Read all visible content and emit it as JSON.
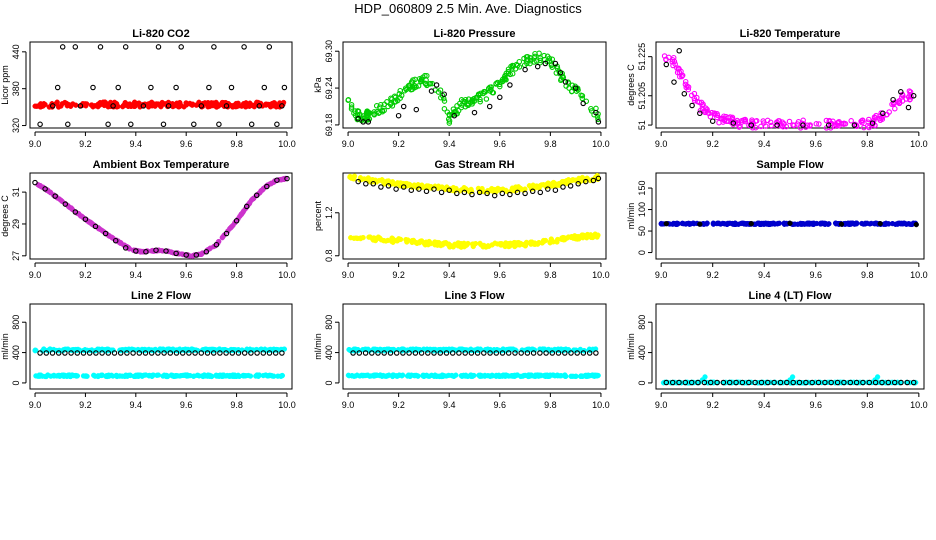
{
  "figure_title": "HDP_060809  2.5 Min. Ave. Diagnostics",
  "colors": {
    "black": "#000000",
    "red": "#ff0000",
    "green": "#00cc00",
    "magenta": "#ff00ff",
    "yellow": "#ffff00",
    "cyan": "#00ffff",
    "blue": "#0000cc",
    "purple": "#cc33cc"
  },
  "chart_data": [
    {
      "type": "scatter",
      "title": "Li-820 CO2",
      "ylabel": "Licor ppm",
      "xlim": [
        8.98,
        10.02
      ],
      "ylim": [
        316,
        456
      ],
      "xticks": [
        "9.0",
        "9.2",
        "9.4",
        "9.6",
        "9.8",
        "10.0"
      ],
      "xtick_values": [
        9.0,
        9.2,
        9.4,
        9.6,
        9.8,
        10.0
      ],
      "yticks": [
        "320",
        "380",
        "440"
      ],
      "ytick_values": [
        320,
        380,
        440
      ],
      "series": [
        {
          "name": "red-dense",
          "color": "#ff0000",
          "marker": "filled",
          "mode": "dense",
          "x_range": [
            9.0,
            9.99
          ],
          "y_center": 354,
          "y_spread": 4,
          "count": 240,
          "seed": 11
        },
        {
          "name": "black-outliers",
          "color": "#000000",
          "marker": "open",
          "x": [
            9.02,
            9.07,
            9.09,
            9.11,
            9.13,
            9.16,
            9.18,
            9.23,
            9.26,
            9.29,
            9.31,
            9.33,
            9.36,
            9.38,
            9.43,
            9.46,
            9.49,
            9.51,
            9.53,
            9.56,
            9.58,
            9.63,
            9.66,
            9.69,
            9.71,
            9.73,
            9.76,
            9.78,
            9.83,
            9.86,
            9.89,
            9.91,
            9.93,
            9.96,
            9.98,
            9.99
          ],
          "y": [
            322,
            352,
            382,
            448,
            322,
            448,
            352,
            382,
            448,
            322,
            352,
            382,
            448,
            322,
            352,
            382,
            448,
            322,
            352,
            382,
            448,
            322,
            352,
            382,
            448,
            322,
            352,
            382,
            448,
            322,
            352,
            382,
            448,
            322,
            352,
            382
          ]
        }
      ]
    },
    {
      "type": "scatter",
      "title": "Li-820 Pressure",
      "ylabel": "kPa",
      "xlim": [
        8.98,
        10.02
      ],
      "ylim": [
        69.175,
        69.315
      ],
      "xticks": [
        "9.0",
        "9.2",
        "9.4",
        "9.6",
        "9.8",
        "10.0"
      ],
      "xtick_values": [
        9.0,
        9.2,
        9.4,
        9.6,
        9.8,
        10.0
      ],
      "yticks": [
        "69.18",
        "69.24",
        "69.30"
      ],
      "ytick_values": [
        69.18,
        69.24,
        69.3
      ],
      "series": [
        {
          "name": "green-dense",
          "color": "#00cc00",
          "marker": "open",
          "mode": "curve",
          "x_range": [
            9.0,
            9.99
          ],
          "y_spread": 0.008,
          "count": 260,
          "seed": 23,
          "curve_x": [
            9.0,
            9.05,
            9.1,
            9.18,
            9.25,
            9.3,
            9.36,
            9.4,
            9.45,
            9.5,
            9.55,
            9.6,
            9.65,
            9.7,
            9.75,
            9.8,
            9.85,
            9.9,
            9.95,
            9.99
          ],
          "curve_y": [
            69.215,
            69.19,
            69.2,
            69.22,
            69.245,
            69.255,
            69.24,
            69.19,
            69.215,
            69.22,
            69.23,
            69.25,
            69.27,
            69.285,
            69.29,
            69.285,
            69.255,
            69.235,
            69.215,
            69.195
          ]
        },
        {
          "name": "black-points",
          "color": "#000000",
          "marker": "open",
          "x": [
            9.04,
            9.06,
            9.08,
            9.2,
            9.22,
            9.27,
            9.33,
            9.35,
            9.38,
            9.42,
            9.5,
            9.56,
            9.6,
            9.64,
            9.7,
            9.75,
            9.78,
            9.82,
            9.84,
            9.86,
            9.9,
            9.93,
            9.98,
            9.99
          ],
          "y": [
            69.19,
            69.185,
            69.185,
            69.195,
            69.21,
            69.205,
            69.235,
            69.245,
            69.23,
            69.195,
            69.2,
            69.21,
            69.225,
            69.245,
            69.27,
            69.275,
            69.28,
            69.28,
            69.265,
            69.25,
            69.24,
            69.215,
            69.2,
            69.185
          ]
        }
      ]
    },
    {
      "type": "scatter",
      "title": "Li-820 Temperature",
      "ylabel": "degrees C",
      "xlim": [
        8.98,
        10.02
      ],
      "ylim": [
        51.1885,
        51.2325
      ],
      "xticks": [
        "9.0",
        "9.2",
        "9.4",
        "9.6",
        "9.8",
        "10.0"
      ],
      "xtick_values": [
        9.0,
        9.2,
        9.4,
        9.6,
        9.8,
        10.0
      ],
      "yticks": [
        "51",
        "51.205",
        "51.225"
      ],
      "ytick_values": [
        51.19,
        51.205,
        51.225
      ],
      "series": [
        {
          "name": "magenta-dense",
          "color": "#ff00ff",
          "marker": "open",
          "mode": "curve",
          "x_range": [
            9.0,
            9.99
          ],
          "y_spread": 0.0025,
          "count": 220,
          "seed": 37,
          "curve_x": [
            9.0,
            9.03,
            9.06,
            9.1,
            9.15,
            9.2,
            9.25,
            9.3,
            9.4,
            9.6,
            9.8,
            9.84,
            9.88,
            9.92,
            9.96,
            9.99
          ],
          "curve_y": [
            51.222,
            51.226,
            51.22,
            51.21,
            51.2,
            51.194,
            51.192,
            51.191,
            51.19,
            51.19,
            51.19,
            51.193,
            51.198,
            51.202,
            51.205,
            51.207
          ]
        },
        {
          "name": "black-points",
          "color": "#000000",
          "marker": "open",
          "x": [
            9.02,
            9.05,
            9.07,
            9.09,
            9.12,
            9.15,
            9.2,
            9.28,
            9.35,
            9.45,
            9.55,
            9.65,
            9.75,
            9.82,
            9.86,
            9.9,
            9.93,
            9.96,
            9.98
          ],
          "y": [
            51.221,
            51.212,
            51.228,
            51.206,
            51.2,
            51.196,
            51.192,
            51.191,
            51.19,
            51.19,
            51.19,
            51.19,
            51.19,
            51.191,
            51.196,
            51.203,
            51.207,
            51.199,
            51.205
          ]
        }
      ]
    },
    {
      "type": "scatter",
      "title": "Ambient Box Temperature",
      "ylabel": "degrees C",
      "xlim": [
        8.98,
        10.02
      ],
      "ylim": [
        26.8,
        32.2
      ],
      "xticks": [
        "9.0",
        "9.2",
        "9.4",
        "9.6",
        "9.8",
        "10.0"
      ],
      "xtick_values": [
        9.0,
        9.2,
        9.4,
        9.6,
        9.8,
        10.0
      ],
      "yticks": [
        "27",
        "29",
        "31"
      ],
      "ytick_values": [
        27,
        29,
        31
      ],
      "series": [
        {
          "name": "purple-dense",
          "color": "#cc33cc",
          "marker": "filled",
          "mode": "curve",
          "x_range": [
            9.0,
            10.0
          ],
          "y_spread": 0.03,
          "count": 260,
          "seed": 41,
          "curve_x": [
            9.0,
            9.05,
            9.1,
            9.2,
            9.3,
            9.38,
            9.42,
            9.5,
            9.55,
            9.62,
            9.66,
            9.72,
            9.8,
            9.86,
            9.92,
            9.96,
            10.0
          ],
          "curve_y": [
            31.6,
            31.1,
            30.5,
            29.3,
            28.2,
            27.4,
            27.25,
            27.35,
            27.2,
            27.0,
            27.1,
            27.7,
            29.2,
            30.5,
            31.4,
            31.75,
            31.85
          ]
        },
        {
          "name": "black-points",
          "color": "#000000",
          "marker": "open",
          "x": [
            9.0,
            9.04,
            9.08,
            9.12,
            9.16,
            9.2,
            9.24,
            9.28,
            9.32,
            9.36,
            9.4,
            9.44,
            9.48,
            9.52,
            9.56,
            9.6,
            9.64,
            9.68,
            9.72,
            9.76,
            9.8,
            9.84,
            9.88,
            9.92,
            9.96,
            10.0
          ],
          "y": [
            31.6,
            31.2,
            30.75,
            30.25,
            29.75,
            29.3,
            28.85,
            28.4,
            27.95,
            27.5,
            27.3,
            27.25,
            27.35,
            27.3,
            27.15,
            27.05,
            27.05,
            27.25,
            27.7,
            28.4,
            29.2,
            30.1,
            30.8,
            31.35,
            31.75,
            31.85
          ]
        }
      ]
    },
    {
      "type": "scatter",
      "title": "Gas Stream RH",
      "ylabel": "percent",
      "xlim": [
        8.98,
        10.02
      ],
      "ylim": [
        0.77,
        1.57
      ],
      "xticks": [
        "9.0",
        "9.2",
        "9.4",
        "9.6",
        "9.8",
        "10.0"
      ],
      "xtick_values": [
        9.0,
        9.2,
        9.4,
        9.6,
        9.8,
        10.0
      ],
      "yticks": [
        "0.8",
        "1.2"
      ],
      "ytick_values": [
        0.8,
        1.2
      ],
      "series": [
        {
          "name": "yellow-upper",
          "color": "#ffff00",
          "marker": "filled",
          "mode": "curve",
          "x_range": [
            9.0,
            9.99
          ],
          "y_spread": 0.02,
          "count": 200,
          "seed": 53,
          "curve_x": [
            9.0,
            9.1,
            9.2,
            9.3,
            9.4,
            9.5,
            9.6,
            9.7,
            9.8,
            9.9,
            9.99
          ],
          "curve_y": [
            1.53,
            1.5,
            1.47,
            1.44,
            1.42,
            1.41,
            1.41,
            1.43,
            1.46,
            1.5,
            1.53
          ]
        },
        {
          "name": "yellow-lower",
          "color": "#ffff00",
          "marker": "filled",
          "mode": "curve",
          "x_range": [
            9.0,
            9.99
          ],
          "y_spread": 0.02,
          "count": 200,
          "seed": 61,
          "curve_x": [
            9.0,
            9.1,
            9.2,
            9.3,
            9.4,
            9.5,
            9.6,
            9.7,
            9.8,
            9.9,
            9.99
          ],
          "curve_y": [
            0.98,
            0.96,
            0.94,
            0.92,
            0.9,
            0.9,
            0.9,
            0.91,
            0.94,
            0.97,
            0.99
          ]
        },
        {
          "name": "black-points",
          "color": "#000000",
          "marker": "open",
          "x": [
            9.04,
            9.07,
            9.1,
            9.13,
            9.16,
            9.19,
            9.22,
            9.25,
            9.28,
            9.31,
            9.34,
            9.37,
            9.4,
            9.43,
            9.46,
            9.49,
            9.52,
            9.55,
            9.58,
            9.61,
            9.64,
            9.67,
            9.7,
            9.73,
            9.76,
            9.79,
            9.82,
            9.85,
            9.88,
            9.91,
            9.94,
            9.97,
            9.99
          ],
          "y": [
            1.49,
            1.47,
            1.47,
            1.44,
            1.45,
            1.42,
            1.44,
            1.41,
            1.42,
            1.4,
            1.42,
            1.39,
            1.41,
            1.38,
            1.39,
            1.37,
            1.39,
            1.38,
            1.36,
            1.38,
            1.37,
            1.39,
            1.38,
            1.4,
            1.39,
            1.42,
            1.41,
            1.44,
            1.45,
            1.47,
            1.49,
            1.5,
            1.52
          ]
        }
      ]
    },
    {
      "type": "scatter",
      "title": "Sample Flow",
      "ylabel": "ml/min",
      "xlim": [
        8.98,
        10.02
      ],
      "ylim": [
        -15,
        185
      ],
      "xticks": [
        "9.0",
        "9.2",
        "9.4",
        "9.6",
        "9.8",
        "10.0"
      ],
      "xtick_values": [
        9.0,
        9.2,
        9.4,
        9.6,
        9.8,
        10.0
      ],
      "yticks": [
        "0",
        "50",
        "100",
        "150"
      ],
      "ytick_values": [
        0,
        50,
        100,
        150
      ],
      "series": [
        {
          "name": "blue-dense",
          "color": "#0000cc",
          "marker": "filled",
          "mode": "dense",
          "x_range": [
            9.0,
            9.99
          ],
          "y_center": 67,
          "y_spread": 1.5,
          "count": 240,
          "seed": 71
        },
        {
          "name": "black-points",
          "color": "#000000",
          "marker": "filled",
          "x": [
            9.02,
            9.15,
            9.35,
            9.5,
            9.7,
            9.85,
            9.99
          ],
          "y": [
            67,
            66,
            67,
            68,
            66,
            67,
            65
          ]
        }
      ]
    },
    {
      "type": "scatter",
      "title": "Line 2 Flow",
      "ylabel": "ml/min",
      "xlim": [
        8.98,
        10.02
      ],
      "ylim": [
        -80,
        1040
      ],
      "xticks": [
        "9.0",
        "9.2",
        "9.4",
        "9.6",
        "9.8",
        "10.0"
      ],
      "xtick_values": [
        9.0,
        9.2,
        9.4,
        9.6,
        9.8,
        10.0
      ],
      "yticks": [
        "0",
        "400",
        "800"
      ],
      "ytick_values": [
        0,
        400,
        800
      ],
      "series": [
        {
          "name": "cyan-upper",
          "color": "#00ffff",
          "marker": "filled",
          "mode": "dense",
          "x_range": [
            9.0,
            9.99
          ],
          "y_center": 435,
          "y_spread": 12,
          "count": 220,
          "seed": 81
        },
        {
          "name": "cyan-lower",
          "color": "#00ffff",
          "marker": "filled",
          "mode": "dense",
          "x_range": [
            9.0,
            9.99
          ],
          "y_center": 95,
          "y_spread": 10,
          "count": 220,
          "seed": 83
        },
        {
          "name": "black-points",
          "color": "#000000",
          "marker": "open",
          "mode": "even",
          "x_range": [
            9.02,
            9.98
          ],
          "y_center": 395,
          "count": 40
        }
      ]
    },
    {
      "type": "scatter",
      "title": "Line 3 Flow",
      "ylabel": "ml/min",
      "xlim": [
        8.98,
        10.02
      ],
      "ylim": [
        -80,
        1040
      ],
      "xticks": [
        "9.0",
        "9.2",
        "9.4",
        "9.6",
        "9.8",
        "10.0"
      ],
      "xtick_values": [
        9.0,
        9.2,
        9.4,
        9.6,
        9.8,
        10.0
      ],
      "yticks": [
        "0",
        "400",
        "800"
      ],
      "ytick_values": [
        0,
        400,
        800
      ],
      "series": [
        {
          "name": "cyan-upper",
          "color": "#00ffff",
          "marker": "filled",
          "mode": "dense",
          "x_range": [
            9.0,
            9.99
          ],
          "y_center": 435,
          "y_spread": 12,
          "count": 220,
          "seed": 91
        },
        {
          "name": "cyan-lower",
          "color": "#00ffff",
          "marker": "filled",
          "mode": "dense",
          "x_range": [
            9.0,
            9.99
          ],
          "y_center": 95,
          "y_spread": 10,
          "count": 220,
          "seed": 93
        },
        {
          "name": "black-points",
          "color": "#000000",
          "marker": "open",
          "mode": "even",
          "x_range": [
            9.02,
            9.98
          ],
          "y_center": 395,
          "count": 40
        }
      ]
    },
    {
      "type": "scatter",
      "title": "Line 4 (LT) Flow",
      "ylabel": "ml/min",
      "xlim": [
        8.98,
        10.02
      ],
      "ylim": [
        -80,
        1040
      ],
      "xticks": [
        "9.0",
        "9.2",
        "9.4",
        "9.6",
        "9.8",
        "10.0"
      ],
      "xtick_values": [
        9.0,
        9.2,
        9.4,
        9.6,
        9.8,
        10.0
      ],
      "yticks": [
        "0",
        "400",
        "800"
      ],
      "ytick_values": [
        0,
        400,
        800
      ],
      "series": [
        {
          "name": "cyan-base",
          "color": "#00ffff",
          "marker": "filled",
          "mode": "dense",
          "x_range": [
            9.0,
            9.99
          ],
          "y_center": 5,
          "y_spread": 4,
          "count": 200,
          "seed": 101
        },
        {
          "name": "cyan-spikes",
          "color": "#00ffff",
          "marker": "filled",
          "x": [
            9.16,
            9.17,
            9.5,
            9.51,
            9.83,
            9.84
          ],
          "y": [
            40,
            80,
            40,
            80,
            40,
            80
          ]
        },
        {
          "name": "black-points",
          "color": "#000000",
          "marker": "open",
          "mode": "even",
          "x_range": [
            9.02,
            9.98
          ],
          "y_center": 5,
          "count": 40
        }
      ]
    }
  ]
}
